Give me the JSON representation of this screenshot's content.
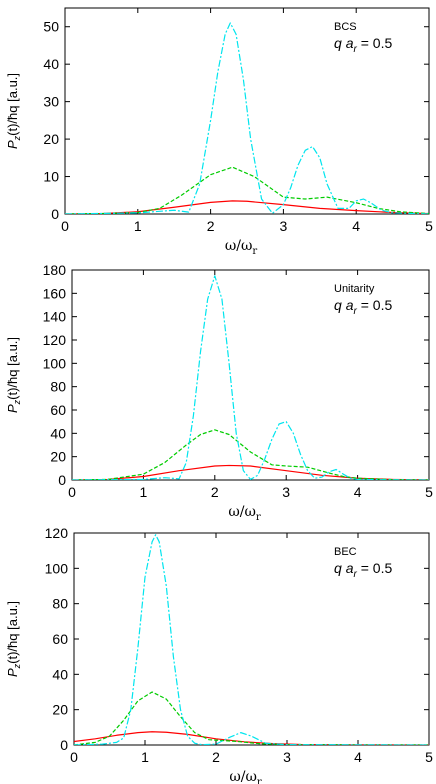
{
  "chart_data": [
    {
      "type": "line",
      "regime_label": "BCS",
      "param_label": "q a_r = 0.5",
      "param_parts": {
        "q": "q",
        "a": "a",
        "sub": "r",
        "rest": " = 0.5"
      },
      "ylabel": "P_z(t)/ħq [a.u.]",
      "ylabel_parts": {
        "main": "P",
        "sub": "z",
        "rest": "(t)/ħq [a.u.]"
      },
      "xlabel_parts": {
        "main": "ω/ω",
        "sub": "r"
      },
      "xlim": [
        0,
        5
      ],
      "ylim": [
        0,
        55
      ],
      "xticks": [
        "0",
        "1",
        "2",
        "3",
        "4",
        "5"
      ],
      "yticks": [
        "0",
        "10",
        "20",
        "30",
        "40",
        "50"
      ],
      "series": [
        {
          "color": "#ff0000",
          "style": "solid",
          "x": [
            0,
            0.5,
            1.0,
            1.5,
            2.0,
            2.3,
            2.5,
            3.0,
            3.5,
            4.0,
            4.5,
            5.0
          ],
          "y": [
            0,
            0.1,
            0.6,
            1.8,
            3.1,
            3.5,
            3.4,
            2.5,
            1.5,
            0.9,
            0.4,
            0.1
          ]
        },
        {
          "color": "#00cc00",
          "style": "dashed",
          "x": [
            0,
            0.5,
            1.0,
            1.3,
            1.6,
            2.0,
            2.3,
            2.6,
            3.0,
            3.3,
            3.6,
            4.0,
            4.3,
            4.6,
            5.0
          ],
          "y": [
            0,
            0.1,
            0.4,
            1.5,
            5.0,
            10.5,
            12.5,
            10.0,
            4.5,
            4.0,
            4.5,
            3.0,
            1.5,
            0.6,
            0.1
          ]
        },
        {
          "color": "#00e5ee",
          "style": "dashed",
          "x": [
            0,
            1.0,
            1.5,
            1.7,
            1.85,
            2.0,
            2.1,
            2.2,
            2.27,
            2.35,
            2.45,
            2.55,
            2.7,
            2.85,
            3.0,
            3.1,
            3.2,
            3.3,
            3.4,
            3.5,
            3.6,
            3.75,
            3.9,
            4.0,
            4.1,
            4.2,
            4.35,
            4.5,
            5.0
          ],
          "y": [
            0,
            0.3,
            1.0,
            0.5,
            8.0,
            25.0,
            38.0,
            48.0,
            51.0,
            48.0,
            36.0,
            20.0,
            4.0,
            0.2,
            2.5,
            7.0,
            13.0,
            17.0,
            18.0,
            15.0,
            8.0,
            1.5,
            1.5,
            3.5,
            4.0,
            3.0,
            1.0,
            0.3,
            0
          ]
        }
      ]
    },
    {
      "type": "line",
      "regime_label": "Unitarity",
      "param_label": "q a_r = 0.5",
      "param_parts": {
        "q": "q",
        "a": "a",
        "sub": "r",
        "rest": " = 0.5"
      },
      "ylabel": "P_z(t)/ħq [a.u.]",
      "ylabel_parts": {
        "main": "P",
        "sub": "z",
        "rest": "(t)/ħq [a.u.]"
      },
      "xlabel_parts": {
        "main": "ω/ω",
        "sub": "r"
      },
      "xlim": [
        0,
        5
      ],
      "ylim": [
        0,
        180
      ],
      "xticks": [
        "0",
        "1",
        "2",
        "3",
        "4",
        "5"
      ],
      "yticks": [
        "0",
        "20",
        "40",
        "60",
        "80",
        "100",
        "120",
        "140",
        "160",
        "180"
      ],
      "series": [
        {
          "color": "#ff0000",
          "style": "solid",
          "x": [
            0,
            0.5,
            1.0,
            1.5,
            2.0,
            2.2,
            2.5,
            3.0,
            3.5,
            4.0,
            4.5,
            5.0
          ],
          "y": [
            0,
            0.5,
            3.0,
            8.0,
            12.0,
            12.5,
            12.0,
            8.0,
            4.0,
            1.5,
            0.5,
            0.1
          ]
        },
        {
          "color": "#00cc00",
          "style": "dashed",
          "x": [
            0,
            0.5,
            1.0,
            1.3,
            1.6,
            1.8,
            2.0,
            2.2,
            2.5,
            2.8,
            3.0,
            3.3,
            3.6,
            3.8,
            4.0,
            4.5,
            5.0
          ],
          "y": [
            0,
            0.5,
            5.0,
            15.0,
            30.0,
            39.0,
            43.0,
            39.0,
            24.0,
            13.0,
            12.0,
            11.0,
            6.0,
            3.0,
            1.5,
            0.3,
            0
          ]
        },
        {
          "color": "#00e5ee",
          "style": "dashed",
          "x": [
            0,
            1.0,
            1.3,
            1.5,
            1.6,
            1.7,
            1.8,
            1.9,
            2.0,
            2.1,
            2.2,
            2.3,
            2.4,
            2.5,
            2.6,
            2.7,
            2.8,
            2.9,
            3.0,
            3.1,
            3.2,
            3.3,
            3.4,
            3.5,
            3.6,
            3.7,
            3.8,
            3.9,
            4.0,
            4.5,
            5.0
          ],
          "y": [
            0,
            0.5,
            2.0,
            1.0,
            15.0,
            55.0,
            110.0,
            155.0,
            175.0,
            155.0,
            100.0,
            40.0,
            8.0,
            0.5,
            4.0,
            18.0,
            35.0,
            48.0,
            50.0,
            40.0,
            22.0,
            8.0,
            1.5,
            2.5,
            7.0,
            9.0,
            5.0,
            1.5,
            0.5,
            0.1,
            0
          ]
        }
      ]
    },
    {
      "type": "line",
      "regime_label": "BEC",
      "param_label": "q a_r = 0.5",
      "param_parts": {
        "q": "q",
        "a": "a",
        "sub": "r",
        "rest": " = 0.5"
      },
      "ylabel": "P_z(t)/ħq [a.u.]",
      "ylabel_parts": {
        "main": "P",
        "sub": "z",
        "rest": "(t)/ħq [a.u.]"
      },
      "xlabel_parts": {
        "main": "ω/ω",
        "sub": "r"
      },
      "xlim": [
        0,
        5
      ],
      "ylim": [
        0,
        120
      ],
      "xticks": [
        "0",
        "1",
        "2",
        "3",
        "4",
        "5"
      ],
      "yticks": [
        "0",
        "20",
        "40",
        "60",
        "80",
        "100",
        "120"
      ],
      "series": [
        {
          "color": "#ff0000",
          "style": "solid",
          "x": [
            0,
            0.3,
            0.6,
            0.9,
            1.1,
            1.3,
            1.6,
            2.0,
            2.4,
            2.8,
            3.2,
            4.0,
            5.0
          ],
          "y": [
            2.0,
            3.5,
            5.5,
            7.0,
            7.5,
            7.2,
            6.0,
            3.5,
            1.8,
            0.8,
            0.3,
            0.1,
            0
          ]
        },
        {
          "color": "#00cc00",
          "style": "dashed",
          "x": [
            0,
            0.3,
            0.5,
            0.7,
            0.9,
            1.1,
            1.3,
            1.5,
            1.7,
            1.9,
            2.1,
            2.3,
            2.6,
            3.0,
            4.0,
            5.0
          ],
          "y": [
            0,
            1.5,
            5.0,
            14.0,
            25.0,
            30.0,
            26.0,
            16.0,
            7.0,
            3.0,
            2.5,
            2.0,
            0.8,
            0.2,
            0,
            0
          ]
        },
        {
          "color": "#00e5ee",
          "style": "dashed",
          "x": [
            0,
            0.4,
            0.6,
            0.7,
            0.8,
            0.9,
            1.0,
            1.1,
            1.15,
            1.2,
            1.3,
            1.4,
            1.5,
            1.6,
            1.7,
            1.8,
            2.0,
            2.2,
            2.35,
            2.5,
            2.7,
            3.0,
            5.0
          ],
          "y": [
            0,
            0.5,
            1.5,
            4.0,
            20.0,
            55.0,
            95.0,
            115.0,
            119.0,
            115.0,
            90.0,
            50.0,
            20.0,
            5.0,
            1.0,
            0.2,
            0.5,
            4.5,
            7.0,
            5.0,
            1.0,
            0.2,
            0
          ]
        }
      ]
    }
  ]
}
